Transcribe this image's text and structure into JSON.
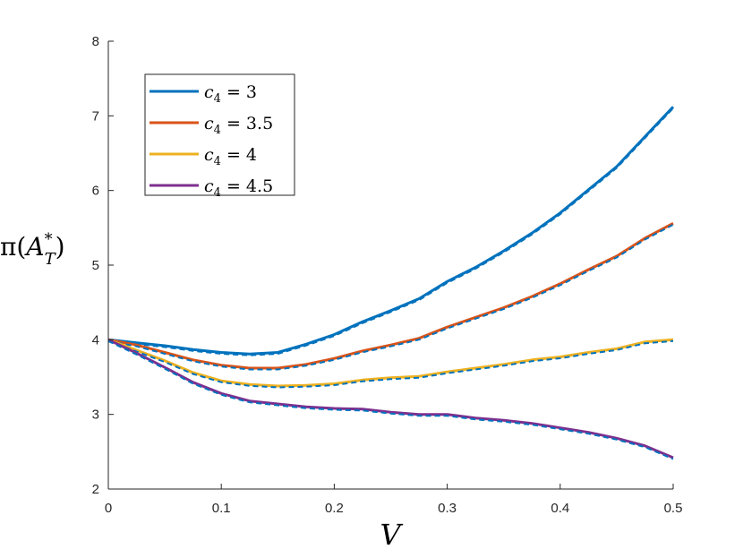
{
  "chart_data": {
    "type": "line",
    "xlabel": "V",
    "ylabel": "π(A_T*)",
    "xlim": [
      0,
      0.5
    ],
    "ylim": [
      2,
      8
    ],
    "xticks": [
      0,
      0.1,
      0.2,
      0.3,
      0.4,
      0.5
    ],
    "yticks": [
      2,
      3,
      4,
      5,
      6,
      7,
      8
    ],
    "xtick_labels": [
      "0",
      "0.1",
      "0.2",
      "0.3",
      "0.4",
      "0.5"
    ],
    "ytick_labels": [
      "2",
      "3",
      "4",
      "5",
      "6",
      "7",
      "8"
    ],
    "grid": false,
    "legend_position": "top-left",
    "x": [
      0,
      0.025,
      0.05,
      0.075,
      0.1,
      0.125,
      0.15,
      0.175,
      0.2,
      0.225,
      0.25,
      0.275,
      0.3,
      0.325,
      0.35,
      0.375,
      0.4,
      0.425,
      0.45,
      0.475,
      0.5
    ],
    "series": [
      {
        "name": "c4 = 3",
        "legend_var": "c",
        "legend_sub": "4",
        "legend_val": "3",
        "color": "#0072BD",
        "values": [
          4.0,
          3.96,
          3.92,
          3.87,
          3.83,
          3.81,
          3.83,
          3.94,
          4.07,
          4.24,
          4.39,
          4.55,
          4.78,
          4.97,
          5.19,
          5.43,
          5.7,
          6.01,
          6.32,
          6.72,
          7.12
        ]
      },
      {
        "name": "c4 = 3.5",
        "legend_var": "c",
        "legend_sub": "4",
        "legend_val": "3.5",
        "color": "#D95319",
        "values": [
          4.0,
          3.93,
          3.83,
          3.73,
          3.66,
          3.62,
          3.62,
          3.67,
          3.75,
          3.85,
          3.93,
          4.02,
          4.17,
          4.3,
          4.43,
          4.58,
          4.75,
          4.94,
          5.12,
          5.36,
          5.56
        ]
      },
      {
        "name": "c4 = 4",
        "legend_var": "c",
        "legend_sub": "4",
        "legend_val": "4",
        "color": "#EDB120",
        "values": [
          4.0,
          3.86,
          3.72,
          3.56,
          3.45,
          3.4,
          3.38,
          3.39,
          3.41,
          3.46,
          3.49,
          3.51,
          3.57,
          3.62,
          3.67,
          3.73,
          3.77,
          3.83,
          3.88,
          3.97,
          4.0
        ]
      },
      {
        "name": "c4 = 4.5",
        "legend_var": "c",
        "legend_sub": "4",
        "legend_val": "4.5",
        "color": "#7E2F8E",
        "values": [
          4.0,
          3.82,
          3.63,
          3.43,
          3.28,
          3.18,
          3.14,
          3.1,
          3.08,
          3.07,
          3.03,
          3.0,
          3.0,
          2.95,
          2.92,
          2.88,
          2.82,
          2.76,
          2.68,
          2.58,
          2.42
        ]
      }
    ],
    "dashed_companion_color": "#0072BD"
  }
}
